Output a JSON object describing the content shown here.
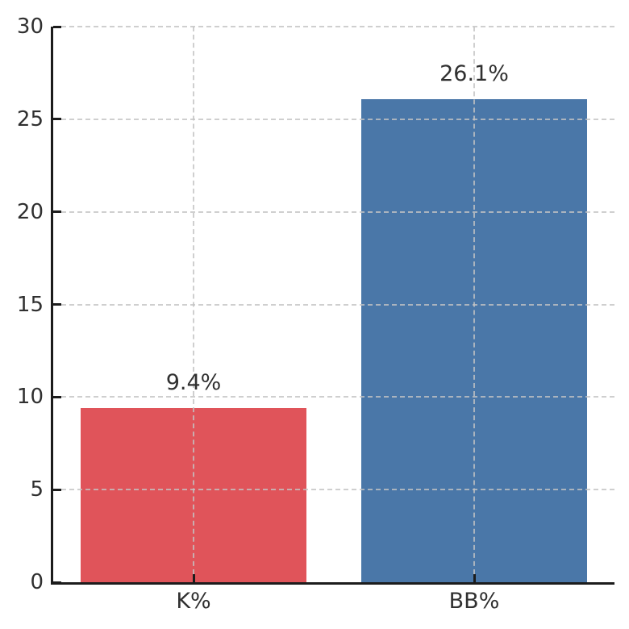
{
  "chart_data": {
    "type": "bar",
    "categories": [
      "K%",
      "BB%"
    ],
    "values": [
      9.4,
      26.1
    ],
    "value_labels": [
      "9.4%",
      "26.1%"
    ],
    "bar_colors": [
      "#e0545a",
      "#4a77a8"
    ],
    "title": "",
    "xlabel": "",
    "ylabel": "",
    "ylim": [
      0,
      30
    ],
    "yticks": [
      0,
      5,
      10,
      15,
      20,
      25,
      30
    ],
    "grid": "dashed, horizontal at y-ticks and vertical at bar centers, drawn over bars",
    "legend": "none",
    "gridline_color": "#c3c3c3",
    "axis_color": "#1c1c1c",
    "text_color": "#303030",
    "background_color": "#ffffff"
  }
}
